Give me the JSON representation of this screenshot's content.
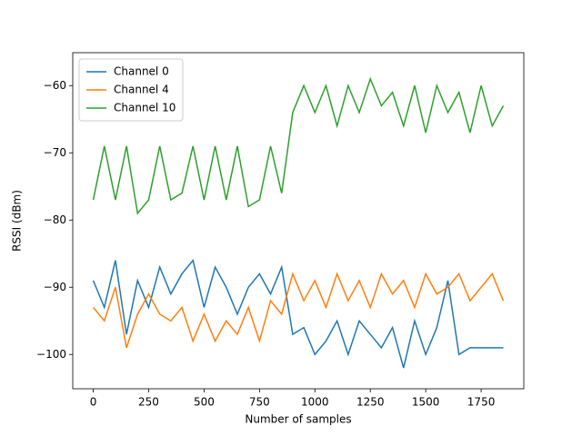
{
  "chart_data": {
    "type": "line",
    "xlabel": "Number of samples",
    "ylabel": "RSSI (dBm)",
    "x": [
      0,
      50,
      100,
      150,
      200,
      250,
      300,
      350,
      400,
      450,
      500,
      550,
      600,
      650,
      700,
      750,
      800,
      850,
      900,
      950,
      1000,
      1050,
      1100,
      1150,
      1200,
      1250,
      1300,
      1350,
      1400,
      1450,
      1500,
      1550,
      1600,
      1650,
      1700,
      1750,
      1800,
      1850
    ],
    "series": [
      {
        "name": "Channel 0",
        "color": "#1f77b4",
        "values": [
          -89,
          -93,
          -86,
          -97,
          -89,
          -93,
          -87,
          -91,
          -88,
          -86,
          -93,
          -87,
          -90,
          -94,
          -90,
          -88,
          -91,
          -87,
          -97,
          -96,
          -100,
          -98,
          -95,
          -100,
          -95,
          -97,
          -99,
          -96,
          -102,
          -95,
          -100,
          -96,
          -89,
          -100,
          -99,
          -99,
          -99,
          -99
        ]
      },
      {
        "name": "Channel 4",
        "color": "#ff7f0e",
        "values": [
          -93,
          -95,
          -90,
          -99,
          -94,
          -91,
          -94,
          -95,
          -93,
          -98,
          -94,
          -98,
          -95,
          -97,
          -93,
          -98,
          -92,
          -94,
          -88,
          -92,
          -89,
          -93,
          -88,
          -92,
          -89,
          -93,
          -88,
          -91,
          -89,
          -93,
          -88,
          -91,
          -90,
          -88,
          -92,
          -90,
          -88,
          -92
        ]
      },
      {
        "name": "Channel 10",
        "color": "#2ca02c",
        "values": [
          -77,
          -69,
          -77,
          -69,
          -79,
          -77,
          -69,
          -77,
          -76,
          -69,
          -77,
          -69,
          -77,
          -69,
          -78,
          -77,
          -69,
          -76,
          -64,
          -60,
          -64,
          -60,
          -66,
          -60,
          -64,
          -59,
          -63,
          -61,
          -66,
          -60,
          -67,
          -60,
          -64,
          -61,
          -67,
          -60,
          -66,
          -63
        ]
      }
    ],
    "xlim": [
      -92.5,
      1942.5
    ],
    "ylim": [
      -105.1,
      -55.1
    ],
    "xticks": [
      0,
      250,
      500,
      750,
      1000,
      1250,
      1500,
      1750
    ],
    "yticks": [
      {
        "value": -100,
        "label": "−100"
      },
      {
        "value": -90,
        "label": "−90"
      },
      {
        "value": -80,
        "label": "−80"
      },
      {
        "value": -70,
        "label": "−70"
      },
      {
        "value": -60,
        "label": "−60"
      }
    ],
    "legend": "upper left"
  }
}
